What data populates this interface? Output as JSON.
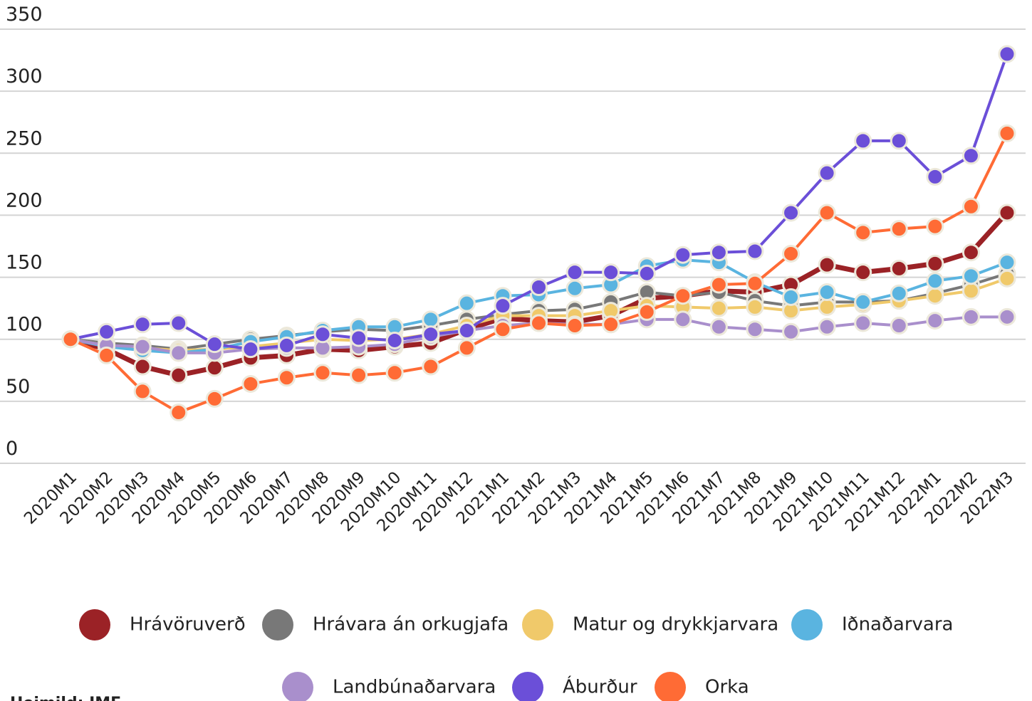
{
  "chart_data": {
    "type": "line",
    "source": "Heimild: IMF",
    "categories": [
      "2020M1",
      "2020M2",
      "2020M3",
      "2020M4",
      "2020M5",
      "2020M6",
      "2020M7",
      "2020M8",
      "2020M9",
      "2020M10",
      "2020M11",
      "2020M12",
      "2021M1",
      "2021M2",
      "2021M3",
      "2021M4",
      "2021M5",
      "2021M6",
      "2021M7",
      "2021M8",
      "2021M9",
      "2021M10",
      "2021M11",
      "2021M12",
      "2022M1",
      "2022M2",
      "2022M3"
    ],
    "ylim": [
      0,
      350
    ],
    "yticks": [
      0,
      50,
      100,
      150,
      200,
      250,
      300,
      350
    ],
    "grid": true,
    "series": [
      {
        "name": "Hrávöruverð",
        "color": "#9b2226",
        "values": [
          100,
          92,
          78,
          71,
          77,
          85,
          87,
          92,
          91,
          94,
          97,
          108,
          117,
          115,
          114,
          119,
          133,
          135,
          139,
          138,
          144,
          160,
          154,
          157,
          161,
          170,
          202
        ]
      },
      {
        "name": "Hrávara án orkugjafa",
        "color": "#787878",
        "values": [
          100,
          97,
          95,
          92,
          96,
          100,
          103,
          106,
          108,
          107,
          111,
          116,
          120,
          123,
          124,
          130,
          138,
          135,
          138,
          131,
          127,
          130,
          130,
          131,
          137,
          144,
          153
        ]
      },
      {
        "name": "Matur og drykkjarvara",
        "color": "#f0c96a",
        "values": [
          100,
          95,
          93,
          91,
          92,
          94,
          97,
          100,
          99,
          100,
          104,
          111,
          119,
          119,
          119,
          123,
          127,
          126,
          125,
          126,
          123,
          126,
          128,
          131,
          135,
          139,
          149
        ]
      },
      {
        "name": "Iðnaðarvara",
        "color": "#5ab4e0",
        "values": [
          100,
          94,
          91,
          89,
          92,
          98,
          102,
          107,
          110,
          110,
          116,
          129,
          135,
          136,
          141,
          144,
          159,
          164,
          162,
          146,
          134,
          138,
          130,
          137,
          147,
          151,
          162
        ]
      },
      {
        "name": "Landbúnaðarvara",
        "color": "#a98fcc",
        "values": [
          100,
          95,
          94,
          89,
          89,
          92,
          93,
          93,
          94,
          96,
          102,
          107,
          111,
          113,
          112,
          112,
          116,
          116,
          110,
          108,
          106,
          110,
          113,
          111,
          115,
          118,
          118
        ]
      },
      {
        "name": "Áburður",
        "color": "#6b4fd8",
        "values": [
          100,
          106,
          112,
          113,
          96,
          92,
          95,
          104,
          101,
          99,
          104,
          107,
          127,
          142,
          154,
          154,
          153,
          168,
          170,
          171,
          202,
          234,
          260,
          260,
          231,
          248,
          330
        ]
      },
      {
        "name": "Orka",
        "color": "#ff6b35",
        "values": [
          100,
          87,
          58,
          41,
          52,
          64,
          69,
          73,
          71,
          73,
          78,
          93,
          108,
          113,
          111,
          112,
          122,
          135,
          144,
          145,
          169,
          202,
          186,
          189,
          191,
          207,
          266
        ]
      }
    ]
  }
}
